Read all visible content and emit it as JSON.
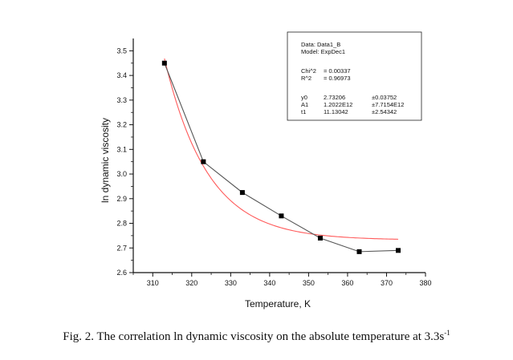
{
  "chart_data": {
    "type": "scatter",
    "title": "",
    "xlabel": "Temperature, K",
    "ylabel": "ln dynamic viscosity",
    "xlim": [
      305,
      380
    ],
    "ylim": [
      2.6,
      3.55
    ],
    "x_ticks": [
      310,
      320,
      330,
      340,
      350,
      360,
      370,
      380
    ],
    "y_ticks": [
      2.6,
      2.7,
      2.8,
      2.9,
      3.0,
      3.1,
      3.2,
      3.3,
      3.4,
      3.5
    ],
    "grid": false,
    "series": [
      {
        "name": "Data1_B",
        "style": "line+markers",
        "color": "#555555",
        "x": [
          313,
          323,
          333,
          343,
          353,
          363,
          373
        ],
        "y": [
          3.45,
          3.05,
          2.925,
          2.83,
          2.74,
          2.685,
          2.69
        ]
      },
      {
        "name": "ExpDec1 fit",
        "style": "line",
        "color": "#ff5a5a",
        "model": {
          "y0": 2.73206,
          "A1": 1202200000000.0,
          "t1": 11.13042
        },
        "x_range": [
          313,
          373
        ]
      }
    ],
    "fit_box": {
      "data_line": "Data: Data1_B",
      "model_line": "Model: ExpDec1",
      "stats": [
        {
          "label": "Chi^2",
          "value": "= 0.00337"
        },
        {
          "label": "R^2",
          "value": "= 0.96973"
        }
      ],
      "params": [
        {
          "name": "y0",
          "value": "2.73206",
          "error": "±0.03752"
        },
        {
          "name": "A1",
          "value": "1.2022E12",
          "error": "±7.7154E12"
        },
        {
          "name": "t1",
          "value": "11.13042",
          "error": "±2.54342"
        }
      ]
    }
  },
  "caption": {
    "text": "Fig. 2. The correlation ln dynamic viscosity on the absolute temperature at 3.3s",
    "superscript": "-1"
  }
}
